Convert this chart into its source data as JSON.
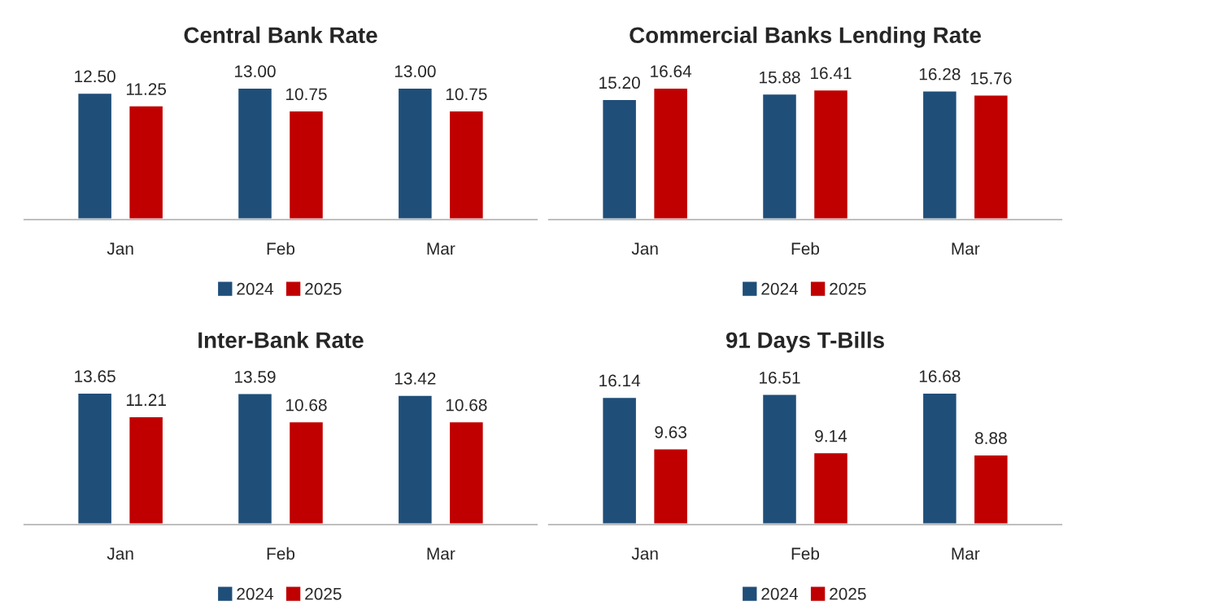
{
  "chart_data": [
    {
      "type": "bar",
      "title": "Central Bank Rate",
      "categories": [
        "Jan",
        "Feb",
        "Mar"
      ],
      "legend": "bottom",
      "grid": false,
      "series": [
        {
          "name": "2024",
          "color": "#1f4e79",
          "values": [
            12.5,
            13.0,
            13.0
          ],
          "value_labels": [
            "12.50",
            "13.00",
            "13.00"
          ]
        },
        {
          "name": "2025",
          "color": "#c00000",
          "values": [
            11.25,
            10.75,
            10.75
          ],
          "value_labels": [
            "11.25",
            "10.75",
            "10.75"
          ]
        }
      ]
    },
    {
      "type": "bar",
      "title": "Commercial Banks Lending Rate",
      "categories": [
        "Jan",
        "Feb",
        "Mar"
      ],
      "legend": "bottom",
      "grid": false,
      "series": [
        {
          "name": "2024",
          "color": "#1f4e79",
          "values": [
            15.2,
            15.88,
            16.28
          ],
          "value_labels": [
            "15.20",
            "15.88",
            "16.28"
          ]
        },
        {
          "name": "2025",
          "color": "#c00000",
          "values": [
            16.64,
            16.41,
            15.76
          ],
          "value_labels": [
            "16.64",
            "16.41",
            "15.76"
          ]
        }
      ]
    },
    {
      "type": "bar",
      "title": "Inter-Bank Rate",
      "categories": [
        "Jan",
        "Feb",
        "Mar"
      ],
      "legend": "bottom",
      "grid": false,
      "series": [
        {
          "name": "2024",
          "color": "#1f4e79",
          "values": [
            13.65,
            13.59,
            13.42
          ],
          "value_labels": [
            "13.65",
            "13.59",
            "13.42"
          ]
        },
        {
          "name": "2025",
          "color": "#c00000",
          "values": [
            11.21,
            10.68,
            10.68
          ],
          "value_labels": [
            "11.21",
            "10.68",
            "10.68"
          ]
        }
      ]
    },
    {
      "type": "bar",
      "title": "91 Days T-Bills",
      "categories": [
        "Jan",
        "Feb",
        "Mar"
      ],
      "legend": "bottom",
      "grid": false,
      "series": [
        {
          "name": "2024",
          "color": "#1f4e79",
          "values": [
            16.14,
            16.51,
            16.68
          ],
          "value_labels": [
            "16.14",
            "16.51",
            "16.68"
          ]
        },
        {
          "name": "2025",
          "color": "#c00000",
          "values": [
            9.63,
            9.14,
            8.88
          ],
          "value_labels": [
            "9.63",
            "9.14",
            "8.88"
          ]
        }
      ]
    }
  ]
}
